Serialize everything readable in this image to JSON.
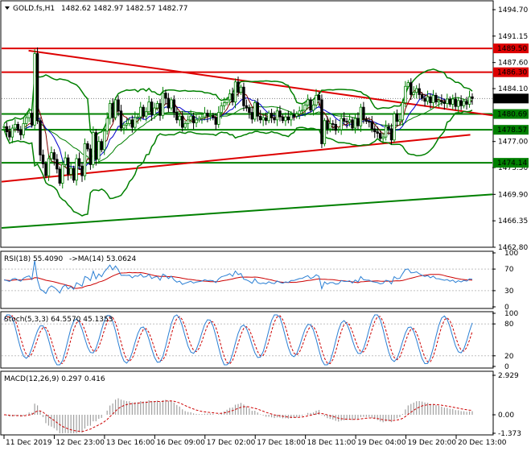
{
  "header": {
    "symbol": "GOLD.fs,H1",
    "ohlc": "1482.62 1482.97 1482.57 1482.77"
  },
  "colors": {
    "bull": "#008000",
    "bear": "#000000",
    "resistance": "#dd0000",
    "support": "#008000",
    "grid": "#c0c0c0",
    "ma_fast": "#800000",
    "ma_slow": "#0000cc",
    "rsi_line": "#2a7fd4",
    "ma_on_rsi": "#cc0000",
    "stoch_main": "#2a7fd4",
    "stoch_signal": "#cc0000",
    "macd_hist": "#a0a0a0",
    "macd_signal": "#cc0000",
    "label_text": "#ffffff"
  },
  "chart_data": {
    "type": "candlestick",
    "main": {
      "ylim": [
        1462.8,
        1494.7
      ],
      "yticks": [
        "1494.70",
        "1491.15",
        "1487.60",
        "1484.10",
        "1480.55",
        "1477.00",
        "1473.50",
        "1469.90",
        "1466.35",
        "1462.80"
      ],
      "last_price_label": "1482.77",
      "price_levels": [
        {
          "label": "1489.50",
          "value": 1489.5,
          "kind": "resistance"
        },
        {
          "label": "1486.30",
          "value": 1486.3,
          "kind": "resistance"
        },
        {
          "label": "1480.69",
          "value": 1480.69,
          "kind": "support"
        },
        {
          "label": "1478.57",
          "value": 1478.57,
          "kind": "support"
        },
        {
          "label": "1474.14",
          "value": 1474.14,
          "kind": "support"
        }
      ],
      "trendlines": [
        {
          "kind": "resistance",
          "from": [
            0.055,
            1489.2
          ],
          "to": [
            1.0,
            1480.5
          ]
        },
        {
          "kind": "resistance",
          "from": [
            0.0,
            1471.6
          ],
          "to": [
            0.955,
            1477.9
          ]
        },
        {
          "kind": "support",
          "from": [
            0.0,
            1465.4
          ],
          "to": [
            1.0,
            1469.9
          ]
        }
      ],
      "close_path": [
        1479.0,
        1478.3,
        1477.6,
        1478.8,
        1479.3,
        1478.5,
        1477.9,
        1479.4,
        1480.2,
        1480.8,
        1479.2,
        1488.8,
        1479.8,
        1475.2,
        1474.0,
        1472.4,
        1474.7,
        1475.5,
        1474.6,
        1473.3,
        1471.4,
        1473.9,
        1474.8,
        1472.6,
        1473.4,
        1471.8,
        1474.7,
        1473.7,
        1472.4,
        1476.7,
        1476.0,
        1473.9,
        1478.2,
        1474.6,
        1477.0,
        1475.9,
        1478.4,
        1480.1,
        1482.1,
        1480.2,
        1482.6,
        1481.1,
        1478.8,
        1479.2,
        1479.4,
        1479.9,
        1478.9,
        1480.2,
        1480.3,
        1481.6,
        1480.4,
        1481.0,
        1482.3,
        1480.6,
        1481.5,
        1482.1,
        1480.5,
        1483.5,
        1482.8,
        1481.5,
        1482.6,
        1480.9,
        1479.9,
        1480.4,
        1478.9,
        1479.4,
        1479.9,
        1480.4,
        1479.5,
        1479.9,
        1480.1,
        1480.3,
        1480.8,
        1480.4,
        1480.5,
        1480.2,
        1479.3,
        1480.9,
        1481.8,
        1482.2,
        1482.6,
        1483.4,
        1482.3,
        1485.0,
        1483.6,
        1484.3,
        1481.8,
        1481.5,
        1480.9,
        1480.0,
        1482.2,
        1480.4,
        1479.9,
        1480.2,
        1479.8,
        1480.8,
        1480.2,
        1479.9,
        1481.1,
        1480.3,
        1479.8,
        1480.3,
        1479.9,
        1480.6,
        1480.4,
        1480.7,
        1481.1,
        1481.2,
        1481.9,
        1482.6,
        1481.2,
        1481.9,
        1483.2,
        1482.6,
        1476.7,
        1479.8,
        1478.7,
        1479.4,
        1479.3,
        1478.5,
        1478.6,
        1480.1,
        1479.7,
        1479.6,
        1479.9,
        1478.8,
        1480.1,
        1479.1,
        1481.6,
        1480.0,
        1479.7,
        1479.6,
        1478.7,
        1478.3,
        1478.1,
        1477.4,
        1477.6,
        1479.0,
        1478.7,
        1477.2,
        1480.7,
        1479.7,
        1479.9,
        1482.2,
        1484.4,
        1484.9,
        1483.3,
        1483.6,
        1484.1,
        1483.3,
        1482.8,
        1482.4,
        1483.0,
        1482.2,
        1483.2,
        1482.3,
        1482.5,
        1482.3,
        1482.1,
        1482.7,
        1482.0,
        1482.7,
        1481.7,
        1482.5,
        1481.8,
        1482.4,
        1482.0,
        1483.0,
        1482.77
      ]
    },
    "rsi": {
      "label": "RSI(18) 55.4090",
      "ma_label": "->MA(14) 53.0624",
      "ylim": [
        0,
        100
      ],
      "levels": [
        70,
        30
      ],
      "yticks": [
        "100",
        "70",
        "30",
        "0"
      ]
    },
    "stoch": {
      "label": "Stoch(5,3,3) 64.5570 45.1353",
      "ylim": [
        0,
        100
      ],
      "levels": [
        80,
        20
      ],
      "yticks": [
        "100",
        "80",
        "20",
        "0"
      ]
    },
    "macd": {
      "label": "MACD(12,26,9) 0.297 0.416",
      "ylim": [
        -1.373,
        2.929
      ],
      "yticks": [
        "2.929",
        "0.00",
        "-1.373"
      ]
    },
    "x_tick_labels": [
      "11 Dec 2019",
      "12 Dec 23:00",
      "13 Dec 16:00",
      "16 Dec 09:00",
      "17 Dec 02:00",
      "17 Dec 18:00",
      "18 Dec 11:00",
      "19 Dec 04:00",
      "19 Dec 20:00",
      "20 Dec 13:00"
    ]
  }
}
